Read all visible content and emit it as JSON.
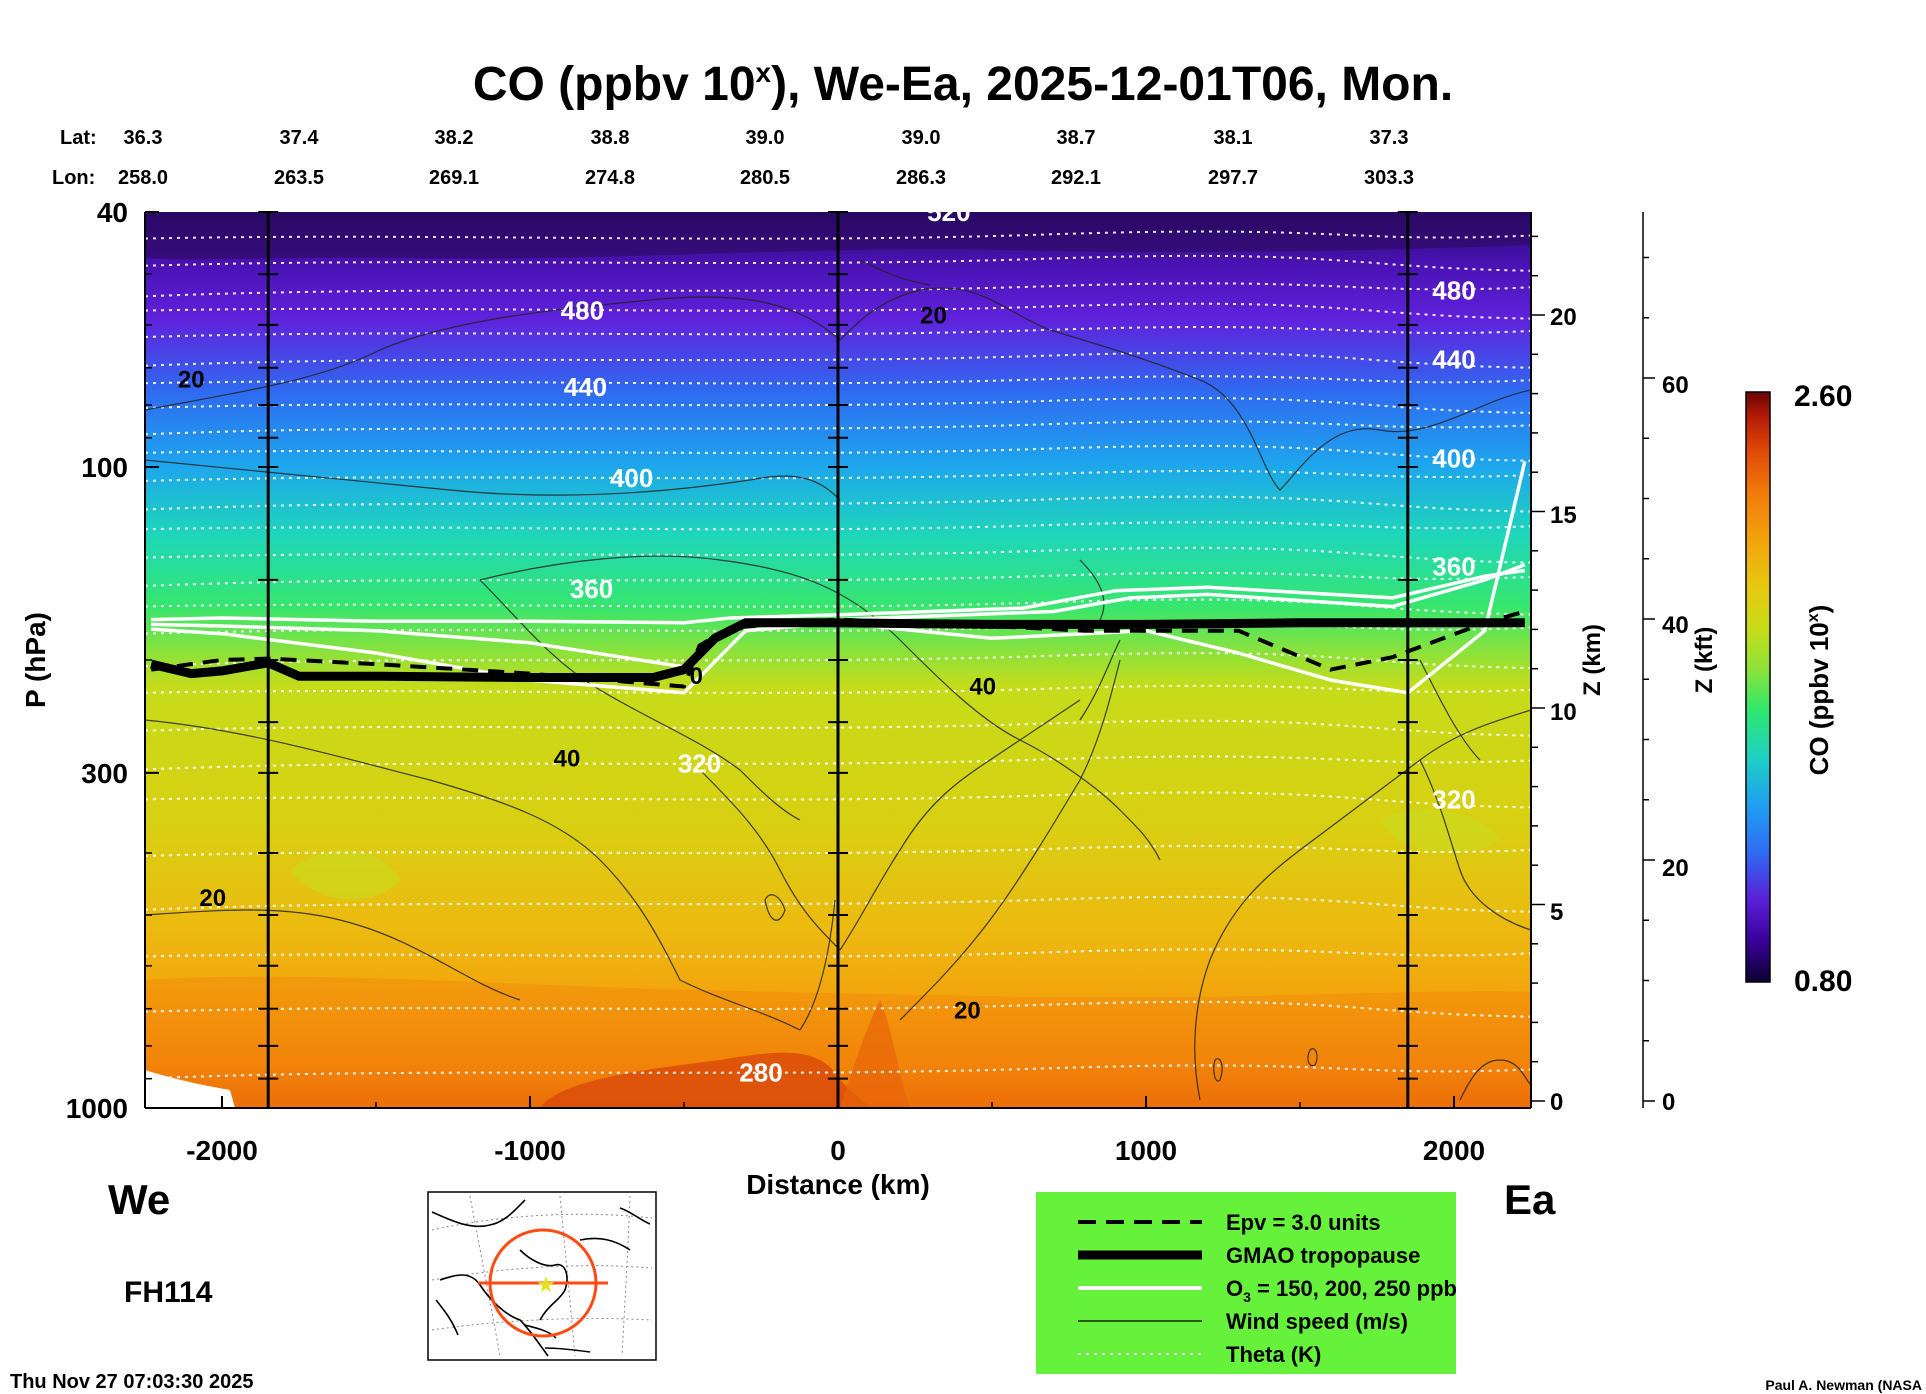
{
  "chart_data": {
    "type": "heatmap",
    "title": "CO (ppbv 10",
    "title_sup": "x",
    "title_rest": "), We-Ea, 2025-12-01T06, Mon.",
    "xlabel": "Distance (km)",
    "ylabel": "P (hPa)",
    "xlim": [
      -2250,
      2250
    ],
    "ylim": [
      1000,
      40
    ],
    "y_scale": "log",
    "x_ticks": [
      -2000,
      -1000,
      0,
      1000,
      2000
    ],
    "y_ticks": [
      40,
      100,
      300,
      1000
    ],
    "z_km_label": "Z (km)",
    "z_km_ticks": [
      0,
      5,
      10,
      15,
      20
    ],
    "z_kft_label": "Z (kft)",
    "z_kft_ticks": [
      0,
      20,
      40,
      60
    ],
    "lat_label": "Lat:",
    "lon_label": "Lon:",
    "lat_values": [
      "36.3",
      "37.4",
      "38.2",
      "38.8",
      "39.0",
      "39.0",
      "38.7",
      "38.1",
      "37.3"
    ],
    "lon_values": [
      "258.0",
      "263.5",
      "269.1",
      "274.8",
      "280.5",
      "286.3",
      "292.1",
      "297.7",
      "303.3"
    ],
    "verticals_km": [
      -1850,
      0,
      1850
    ],
    "colorbar": {
      "label": "CO (ppbv 10",
      "label_sup": "x",
      "label_end": ")",
      "min": "0.80",
      "max": "2.60",
      "colors": [
        "#0a0030",
        "#3a009a",
        "#5a20d8",
        "#2f6cf2",
        "#1fa0f0",
        "#1ed0c4",
        "#2ee870",
        "#8ce23a",
        "#c8dc18",
        "#e6c810",
        "#f3a20c",
        "#f27a0a",
        "#e04a08",
        "#b01a06",
        "#6a0404"
      ]
    },
    "theta_labels": [
      {
        "text": "520",
        "x": 360,
        "p": 40
      },
      {
        "text": "480",
        "x": -830,
        "p": 57
      },
      {
        "text": "480",
        "x": 2000,
        "p": 53
      },
      {
        "text": "440",
        "x": -820,
        "p": 75
      },
      {
        "text": "440",
        "x": 2000,
        "p": 68
      },
      {
        "text": "400",
        "x": -670,
        "p": 104
      },
      {
        "text": "400",
        "x": 2000,
        "p": 97
      },
      {
        "text": "360",
        "x": -800,
        "p": 155
      },
      {
        "text": "360",
        "x": 2000,
        "p": 143
      },
      {
        "text": "320",
        "x": -450,
        "p": 290
      },
      {
        "text": "320",
        "x": 2000,
        "p": 330
      },
      {
        "text": "280",
        "x": -250,
        "p": 880
      }
    ],
    "wind_labels": [
      {
        "text": "20",
        "x": -2100,
        "p": 73
      },
      {
        "text": "20",
        "x": 310,
        "p": 58
      },
      {
        "text": "40",
        "x": -880,
        "p": 285
      },
      {
        "text": "40",
        "x": 470,
        "p": 220
      },
      {
        "text": "20",
        "x": -2030,
        "p": 470
      },
      {
        "text": "20",
        "x": 420,
        "p": 705
      },
      {
        "text": "0",
        "x": -460,
        "p": 212
      }
    ],
    "series": [
      {
        "name": "GMAO tropopause",
        "x": [
          -2230,
          -2100,
          -2000,
          -1850,
          -1750,
          -1500,
          -1000,
          -600,
          -500,
          -400,
          -300,
          0,
          500,
          1000,
          1500,
          2000,
          2230
        ],
        "p": [
          203,
          210,
          208,
          202,
          212,
          212,
          213,
          213,
          207,
          185,
          175,
          175,
          176,
          176,
          175,
          175,
          175
        ]
      },
      {
        "name": "Epv = 3.0 units",
        "x": [
          -2230,
          -2100,
          -2000,
          -1850,
          -1500,
          -1000,
          -600,
          -500,
          -450,
          -350,
          -200,
          0,
          400,
          800,
          1300,
          1600,
          1800,
          2100,
          2230
        ],
        "p": [
          207,
          203,
          200,
          199,
          203,
          210,
          218,
          220,
          190,
          178,
          176,
          173,
          176,
          180,
          180,
          207,
          198,
          175,
          168
        ]
      },
      {
        "name": "O3 150 ppb",
        "x": [
          -2230,
          -2000,
          -1500,
          -1000,
          -500,
          -350,
          0,
          600,
          900,
          1200,
          1800,
          2100,
          2230
        ],
        "p": [
          173,
          172,
          174,
          174,
          175,
          172,
          170,
          166,
          156,
          154,
          160,
          148,
          145
        ]
      },
      {
        "name": "O3 200 ppb",
        "x": [
          -2230,
          -2000,
          -1500,
          -1000,
          -500,
          -350,
          0,
          700,
          950,
          1200,
          1800,
          2100,
          2230
        ],
        "p": [
          176,
          177,
          180,
          188,
          205,
          178,
          173,
          168,
          160,
          158,
          165,
          150,
          142
        ]
      },
      {
        "name": "O3 250 ppb",
        "x": [
          -2230,
          -2000,
          -1500,
          -1000,
          -500,
          -300,
          0,
          500,
          1000,
          1300,
          1600,
          1850,
          2100,
          2230
        ],
        "p": [
          179,
          182,
          195,
          215,
          225,
          180,
          175,
          185,
          180,
          195,
          215,
          225,
          180,
          98
        ]
      }
    ],
    "legend": {
      "placement": "bottom-right",
      "background": "#66f23a",
      "items": [
        {
          "label": "Epv = 3.0 units",
          "style": "dashed"
        },
        {
          "label": "GMAO tropopause",
          "style": "thick"
        },
        {
          "label": "O",
          "sub": "3",
          "rest": " = 150, 200, 250 ppb",
          "style": "white"
        },
        {
          "label": "Wind speed (m/s)",
          "style": "thin"
        },
        {
          "label": "Theta (K)",
          "style": "dotted"
        }
      ]
    },
    "left_dir": "We",
    "right_dir": "Ea",
    "forecast": "FH114",
    "timestamp": "Thu Nov 27 07:03:30 2025",
    "credit": "Paul A. Newman (NASA"
  }
}
